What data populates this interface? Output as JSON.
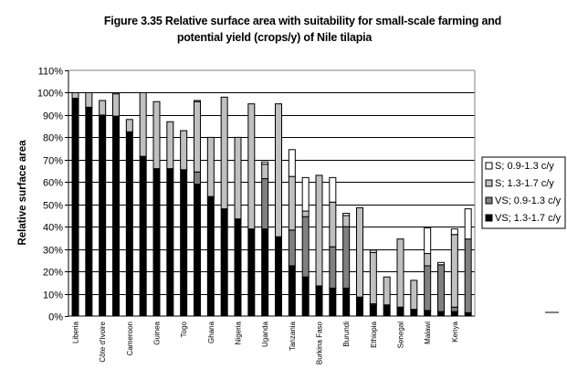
{
  "chart_data": {
    "type": "bar",
    "stacked": true,
    "title": "Figure 3.35 Relative surface area with suitability for small-scale farming and potential yield (crops/y) of Nile tilapia",
    "title_lines": [
      "Figure 3.35 Relative surface area with suitability for small-scale farming and",
      "potential yield (crops/y) of Nile tilapia"
    ],
    "xlabel": "",
    "ylabel": "Relative surface area",
    "ylim": [
      0,
      110
    ],
    "yticks": [
      "0%",
      "10%",
      "20%",
      "30%",
      "40%",
      "50%",
      "60%",
      "70%",
      "80%",
      "90%",
      "100%",
      "110%"
    ],
    "grid": true,
    "legend_position": "right",
    "x_tick_labels": [
      "Liberia",
      "",
      "Côte d'Ivoire",
      "",
      "Cameroon",
      "",
      "Guinea",
      "",
      "Togo",
      "",
      "Ghana",
      "",
      "Nigeria",
      "",
      "Uganda",
      "",
      "Tanzania",
      "",
      "Burkina Faso",
      "",
      "Burundi",
      "",
      "Ethiopia",
      "",
      "Senegal",
      "",
      "Malawi",
      "",
      "Kenya",
      ""
    ],
    "series": [
      {
        "name": "VS; 1.3-1.7 c/y",
        "color": "#000000",
        "values": [
          97.5,
          93.5,
          90,
          89.5,
          82,
          71.5,
          66,
          66,
          65.5,
          59,
          53.5,
          48,
          43.5,
          39,
          39,
          35.5,
          22.5,
          17.5,
          13.5,
          12.5,
          12.5,
          8.5,
          5,
          5,
          4,
          3,
          2.5,
          2,
          2,
          1.5
        ]
      },
      {
        "name": "VS; 0.9-1.3 c/y",
        "color": "#808080",
        "values": [
          0,
          0,
          0,
          0,
          0.5,
          0,
          0,
          0,
          0,
          5.5,
          0,
          0,
          0,
          0,
          22.5,
          0,
          16,
          27,
          0,
          18.5,
          27.5,
          0,
          0.5,
          0,
          0,
          0,
          20,
          21,
          2,
          33
        ]
      },
      {
        "name": "S; 1.3-1.7 c/y",
        "color": "#c0c0c0",
        "values": [
          2.5,
          6.5,
          6.5,
          10,
          5.5,
          28.5,
          30,
          21,
          17.5,
          31.5,
          26.5,
          50,
          36.5,
          56,
          6.5,
          59.5,
          24,
          2.5,
          49.5,
          20,
          5,
          40,
          23,
          12.5,
          30.5,
          13,
          5.5,
          0,
          32.5,
          0
        ]
      },
      {
        "name": "S; 0.9-1.3 c/y",
        "color": "#ffffff",
        "values": [
          0,
          0,
          0,
          0.5,
          0,
          0,
          0,
          0,
          0,
          0.5,
          0,
          0,
          0,
          0,
          1,
          0,
          12,
          15,
          0,
          11,
          1,
          0,
          1,
          0,
          0,
          0,
          11.5,
          1,
          2.5,
          13.5
        ]
      }
    ],
    "legend_order": [
      "S; 0.9-1.3 c/y",
      "S; 1.3-1.7 c/y",
      "VS; 0.9-1.3 c/y",
      "VS; 1.3-1.7 c/y"
    ]
  }
}
